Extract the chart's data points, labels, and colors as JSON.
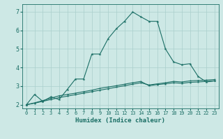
{
  "title": "",
  "xlabel": "Humidex (Indice chaleur)",
  "ylabel": "",
  "background_color": "#cde8e5",
  "grid_color": "#aacfcc",
  "line_color": "#1a6e65",
  "xlim": [
    -0.5,
    23.5
  ],
  "ylim": [
    1.8,
    7.4
  ],
  "xticks": [
    0,
    1,
    2,
    3,
    4,
    5,
    6,
    7,
    8,
    9,
    10,
    11,
    12,
    13,
    14,
    15,
    16,
    17,
    18,
    19,
    20,
    21,
    22,
    23
  ],
  "yticks": [
    2,
    3,
    4,
    5,
    6,
    7
  ],
  "line1_x": [
    0,
    1,
    2,
    3,
    4,
    5,
    6,
    7,
    8,
    9,
    10,
    11,
    12,
    13,
    14,
    15,
    16,
    17,
    18,
    19,
    20,
    21,
    22,
    23
  ],
  "line1_y": [
    2.0,
    2.55,
    2.18,
    2.42,
    2.28,
    2.82,
    3.38,
    3.38,
    4.72,
    4.72,
    5.55,
    6.08,
    6.48,
    6.98,
    6.72,
    6.48,
    6.48,
    5.0,
    4.3,
    4.15,
    4.2,
    3.52,
    3.22,
    3.28
  ],
  "line2_x": [
    0,
    1,
    2,
    3,
    4,
    5,
    6,
    7,
    8,
    9,
    10,
    11,
    12,
    13,
    14,
    15,
    16,
    17,
    18,
    19,
    20,
    21,
    22,
    23
  ],
  "line2_y": [
    2.0,
    2.1,
    2.22,
    2.35,
    2.48,
    2.55,
    2.62,
    2.7,
    2.78,
    2.88,
    2.95,
    3.02,
    3.1,
    3.18,
    3.25,
    3.02,
    3.08,
    3.12,
    3.18,
    3.15,
    3.2,
    3.22,
    3.25,
    3.28
  ],
  "line3_x": [
    0,
    1,
    2,
    3,
    4,
    5,
    6,
    7,
    8,
    9,
    10,
    11,
    12,
    13,
    14,
    15,
    16,
    17,
    18,
    19,
    20,
    21,
    22,
    23
  ],
  "line3_y": [
    2.0,
    2.08,
    2.18,
    2.28,
    2.38,
    2.46,
    2.54,
    2.62,
    2.7,
    2.78,
    2.86,
    2.94,
    3.02,
    3.1,
    3.18,
    3.06,
    3.12,
    3.18,
    3.25,
    3.22,
    3.28,
    3.3,
    3.32,
    3.35
  ],
  "xlabel_fontsize": 6.5,
  "xtick_fontsize": 5.0,
  "ytick_fontsize": 6.0
}
